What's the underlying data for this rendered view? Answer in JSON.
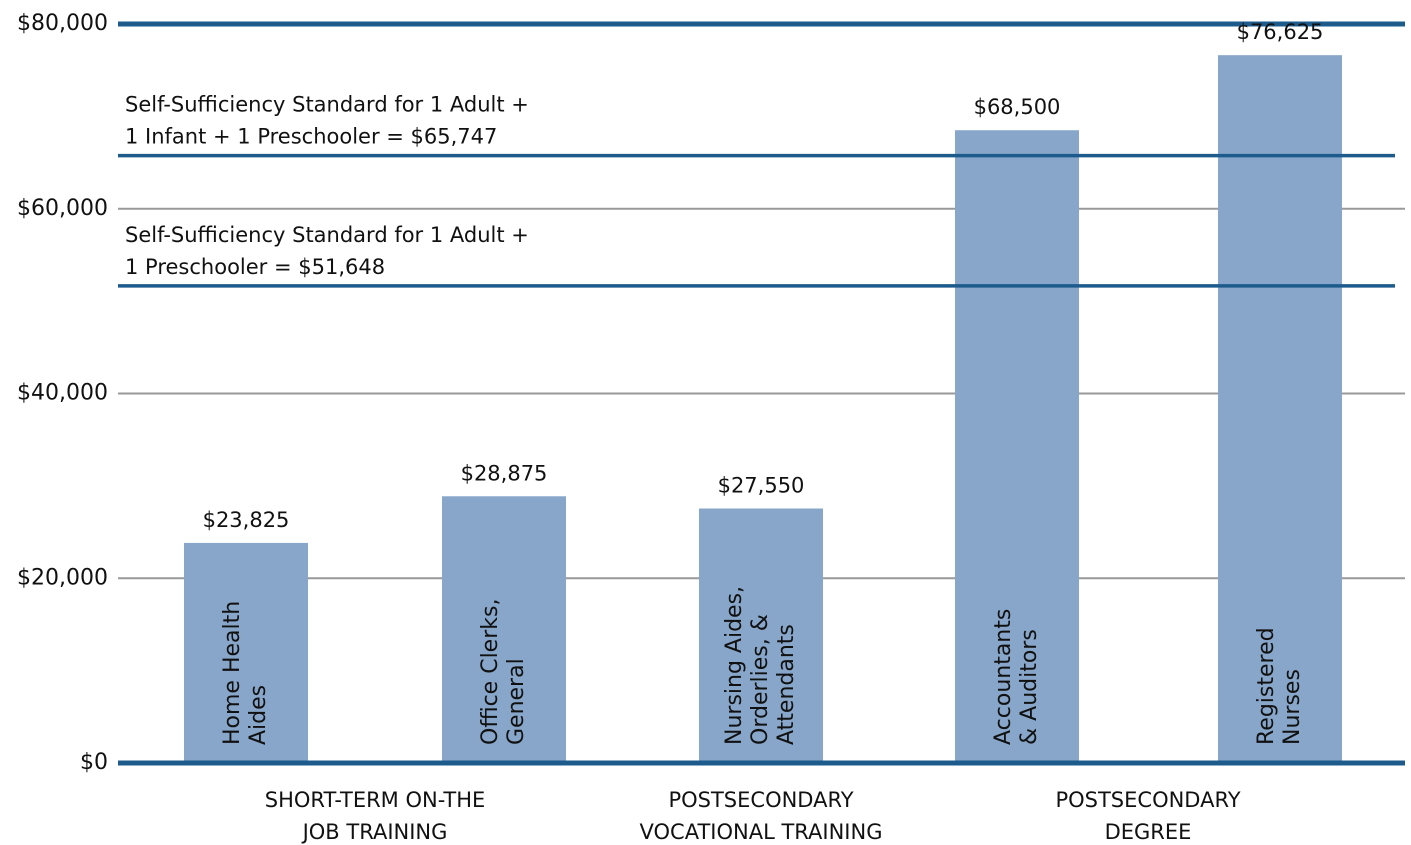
{
  "chart_data": {
    "type": "bar",
    "categories": [
      [
        "Home Health",
        "Aides"
      ],
      [
        "Office Clerks,",
        "General"
      ],
      [
        "Nursing Aides,",
        "Orderlies, &",
        "Attendants"
      ],
      [
        "Accountants",
        "& Auditors"
      ],
      [
        "Registered",
        "Nurses"
      ]
    ],
    "values": [
      23825,
      28875,
      27550,
      68500,
      76625
    ],
    "value_labels": [
      "$23,825",
      "$28,875",
      "$27,550",
      "$68,500",
      "$76,625"
    ],
    "color": "#87a6c9",
    "groups": [
      [
        "SHORT-TERM ON-THE",
        "JOB TRAINING"
      ],
      [
        "POSTSECONDARY",
        "VOCATIONAL TRAINING"
      ],
      [
        "POSTSECONDARY",
        "DEGREE"
      ]
    ],
    "reference_lines": [
      {
        "label": [
          "Self-Sufficiency Standard for 1 Adult +",
          "1 Infant + 1 Preschooler = $65,747"
        ],
        "value": 65747
      },
      {
        "label": [
          "Self-Sufficiency Standard for 1 Adult +",
          "1 Preschooler = $51,648"
        ],
        "value": 51648
      }
    ],
    "ylim": [
      0,
      80000
    ],
    "yticks": [
      {
        "value": 0,
        "label": "$0"
      },
      {
        "value": 20000,
        "label": "$20,000"
      },
      {
        "value": 40000,
        "label": "$40,000"
      },
      {
        "value": 60000,
        "label": "$60,000"
      },
      {
        "value": 80000,
        "label": "$80,000"
      }
    ],
    "grid": true
  }
}
